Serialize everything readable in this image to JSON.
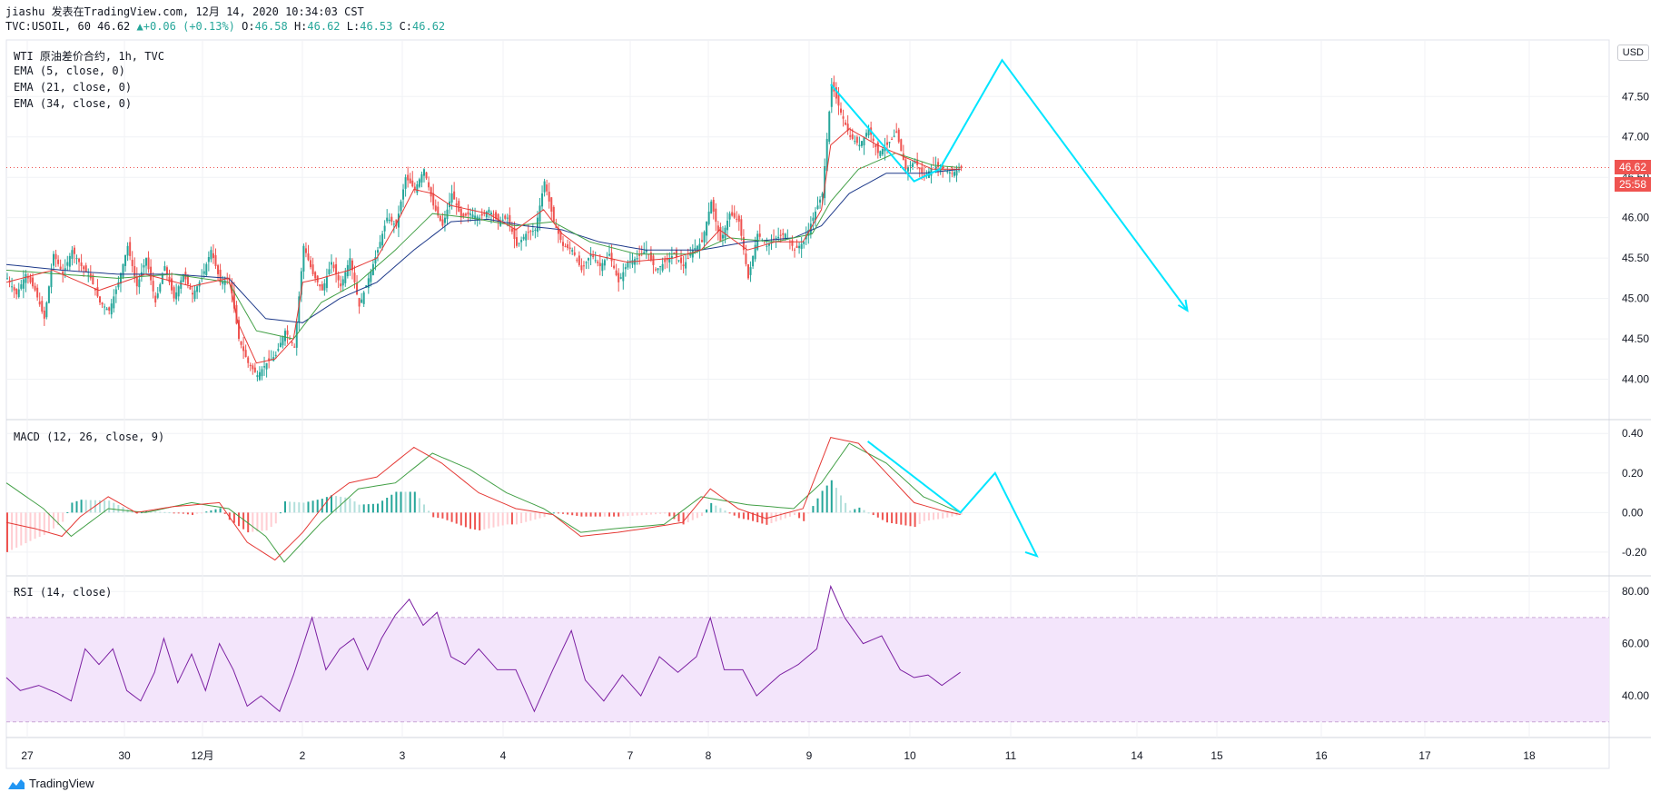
{
  "header": {
    "publisher": "jiashu 发表在TradingView.com, 12月 14, 2020 10:34:03 CST",
    "symbol": "TVC:USOIL, 60",
    "last": "46.62",
    "change": "+0.06 (+0.13%)",
    "o_label": "O:",
    "o": "46.58",
    "h_label": "H:",
    "h": "46.62",
    "l_label": "L:",
    "l": "46.53",
    "c_label": "C:",
    "c": "46.62",
    "up_arrow": "▲"
  },
  "indicators": {
    "title": "WTI 原油差价合约, 1h, TVC",
    "ema5": "EMA (5, close, 0)",
    "ema21": "EMA (21, close, 0)",
    "ema34": "EMA (34, close, 0)",
    "macd": "MACD (12, 26, close, 9)",
    "rsi": "RSI (14, close)"
  },
  "price_tag": {
    "price": "46.62",
    "countdown": "25:58"
  },
  "currency_button": "USD",
  "logo_text": "TradingView",
  "colors": {
    "up": "#26a69a",
    "down": "#ef5350",
    "ema5": "#e53935",
    "ema21": "#43a047",
    "ema34": "#1e3a8a",
    "annotation": "#00e5ff",
    "rsi": "#7b1fa2",
    "rsi_band": "#f3e5fb"
  },
  "chart_data": [
    {
      "type": "candlestick",
      "name": "TVC:USOIL, 60",
      "x_ticks": [
        "27",
        "30",
        "12月",
        "2",
        "3",
        "4",
        "7",
        "8",
        "9",
        "10",
        "11",
        "14",
        "15",
        "16",
        "17",
        "18"
      ],
      "y_ticks": [
        "44.00",
        "44.50",
        "45.00",
        "45.50",
        "46.00",
        "46.50",
        "47.00",
        "47.50"
      ],
      "ylim": [
        43.5,
        48.2
      ],
      "close_path": [
        [
          0,
          45.25
        ],
        [
          4,
          45.05
        ],
        [
          8,
          45.3
        ],
        [
          12,
          45.1
        ],
        [
          16,
          44.75
        ],
        [
          20,
          45.55
        ],
        [
          24,
          45.3
        ],
        [
          28,
          45.6
        ],
        [
          32,
          45.4
        ],
        [
          36,
          45.25
        ],
        [
          40,
          44.95
        ],
        [
          44,
          44.85
        ],
        [
          48,
          45.2
        ],
        [
          52,
          45.65
        ],
        [
          56,
          45.15
        ],
        [
          60,
          45.5
        ],
        [
          64,
          44.95
        ],
        [
          68,
          45.4
        ],
        [
          72,
          45.0
        ],
        [
          76,
          45.3
        ],
        [
          80,
          45.05
        ],
        [
          84,
          45.25
        ],
        [
          88,
          45.6
        ],
        [
          92,
          45.2
        ],
        [
          96,
          45.25
        ],
        [
          100,
          44.5
        ],
        [
          104,
          44.2
        ],
        [
          108,
          44.05
        ],
        [
          112,
          44.2
        ],
        [
          116,
          44.3
        ],
        [
          120,
          44.6
        ],
        [
          124,
          44.4
        ],
        [
          128,
          45.65
        ],
        [
          132,
          45.3
        ],
        [
          136,
          45.1
        ],
        [
          140,
          45.45
        ],
        [
          144,
          45.15
        ],
        [
          148,
          45.5
        ],
        [
          152,
          44.9
        ],
        [
          156,
          45.25
        ],
        [
          160,
          45.6
        ],
        [
          164,
          46.0
        ],
        [
          168,
          45.9
        ],
        [
          172,
          46.5
        ],
        [
          176,
          46.35
        ],
        [
          180,
          46.6
        ],
        [
          184,
          46.15
        ],
        [
          188,
          45.9
        ],
        [
          192,
          46.3
        ],
        [
          196,
          46.0
        ],
        [
          200,
          46.05
        ],
        [
          204,
          46.0
        ],
        [
          208,
          46.1
        ],
        [
          212,
          45.95
        ],
        [
          216,
          46.0
        ],
        [
          220,
          45.65
        ],
        [
          224,
          45.8
        ],
        [
          228,
          45.85
        ],
        [
          232,
          46.45
        ],
        [
          236,
          45.95
        ],
        [
          240,
          45.65
        ],
        [
          244,
          45.6
        ],
        [
          248,
          45.35
        ],
        [
          252,
          45.55
        ],
        [
          256,
          45.4
        ],
        [
          260,
          45.55
        ],
        [
          264,
          45.2
        ],
        [
          268,
          45.45
        ],
        [
          272,
          45.5
        ],
        [
          276,
          45.6
        ],
        [
          280,
          45.35
        ],
        [
          284,
          45.45
        ],
        [
          288,
          45.55
        ],
        [
          292,
          45.4
        ],
        [
          296,
          45.6
        ],
        [
          300,
          45.7
        ],
        [
          304,
          46.2
        ],
        [
          308,
          45.7
        ],
        [
          312,
          46.05
        ],
        [
          316,
          45.95
        ],
        [
          320,
          45.25
        ],
        [
          324,
          45.8
        ],
        [
          328,
          45.65
        ],
        [
          332,
          45.75
        ],
        [
          336,
          45.8
        ],
        [
          340,
          45.6
        ],
        [
          344,
          45.7
        ],
        [
          348,
          46.0
        ],
        [
          352,
          46.3
        ],
        [
          356,
          47.65
        ],
        [
          360,
          47.3
        ],
        [
          364,
          47.0
        ],
        [
          368,
          46.9
        ],
        [
          372,
          47.1
        ],
        [
          376,
          46.8
        ],
        [
          380,
          46.9
        ],
        [
          384,
          47.05
        ],
        [
          388,
          46.6
        ],
        [
          392,
          46.7
        ],
        [
          396,
          46.5
        ],
        [
          400,
          46.65
        ],
        [
          404,
          46.6
        ],
        [
          408,
          46.55
        ],
        [
          412,
          46.62
        ]
      ],
      "ema5_path": [
        [
          0,
          45.2
        ],
        [
          20,
          45.35
        ],
        [
          40,
          45.1
        ],
        [
          60,
          45.3
        ],
        [
          80,
          45.15
        ],
        [
          96,
          45.25
        ],
        [
          100,
          44.7
        ],
        [
          108,
          44.2
        ],
        [
          116,
          44.25
        ],
        [
          124,
          44.5
        ],
        [
          128,
          45.2
        ],
        [
          136,
          45.25
        ],
        [
          148,
          45.35
        ],
        [
          160,
          45.5
        ],
        [
          168,
          45.9
        ],
        [
          176,
          46.35
        ],
        [
          184,
          46.3
        ],
        [
          192,
          46.15
        ],
        [
          208,
          46.05
        ],
        [
          220,
          45.85
        ],
        [
          232,
          46.1
        ],
        [
          240,
          45.8
        ],
        [
          252,
          45.55
        ],
        [
          268,
          45.45
        ],
        [
          288,
          45.5
        ],
        [
          300,
          45.6
        ],
        [
          308,
          45.85
        ],
        [
          320,
          45.6
        ],
        [
          332,
          45.7
        ],
        [
          344,
          45.7
        ],
        [
          352,
          46.1
        ],
        [
          356,
          46.9
        ],
        [
          364,
          47.1
        ],
        [
          376,
          46.9
        ],
        [
          388,
          46.75
        ],
        [
          400,
          46.6
        ],
        [
          412,
          46.6
        ]
      ],
      "ema21_path": [
        [
          0,
          45.35
        ],
        [
          24,
          45.3
        ],
        [
          48,
          45.25
        ],
        [
          72,
          45.3
        ],
        [
          96,
          45.2
        ],
        [
          108,
          44.6
        ],
        [
          124,
          44.5
        ],
        [
          136,
          44.95
        ],
        [
          152,
          45.2
        ],
        [
          168,
          45.6
        ],
        [
          184,
          46.05
        ],
        [
          200,
          46.0
        ],
        [
          220,
          45.9
        ],
        [
          236,
          45.95
        ],
        [
          252,
          45.7
        ],
        [
          272,
          45.55
        ],
        [
          296,
          45.55
        ],
        [
          312,
          45.75
        ],
        [
          332,
          45.7
        ],
        [
          348,
          45.8
        ],
        [
          356,
          46.2
        ],
        [
          368,
          46.6
        ],
        [
          384,
          46.8
        ],
        [
          400,
          46.65
        ],
        [
          412,
          46.62
        ]
      ],
      "ema34_path": [
        [
          0,
          45.42
        ],
        [
          24,
          45.35
        ],
        [
          48,
          45.3
        ],
        [
          72,
          45.3
        ],
        [
          96,
          45.25
        ],
        [
          112,
          44.75
        ],
        [
          128,
          44.7
        ],
        [
          144,
          45.0
        ],
        [
          160,
          45.2
        ],
        [
          176,
          45.6
        ],
        [
          192,
          45.95
        ],
        [
          208,
          45.98
        ],
        [
          224,
          45.9
        ],
        [
          240,
          45.85
        ],
        [
          256,
          45.7
        ],
        [
          276,
          45.6
        ],
        [
          300,
          45.6
        ],
        [
          320,
          45.7
        ],
        [
          340,
          45.75
        ],
        [
          352,
          45.9
        ],
        [
          364,
          46.3
        ],
        [
          380,
          46.55
        ],
        [
          396,
          46.55
        ],
        [
          412,
          46.6
        ]
      ],
      "annotation_arrows": [
        [
          [
            356,
            47.65
          ],
          [
            392,
            46.45
          ],
          [
            403,
            46.6
          ],
          [
            430,
            47.95
          ],
          [
            510,
            44.85
          ]
        ]
      ]
    },
    {
      "type": "macd",
      "name": "MACD (12, 26, close, 9)",
      "y_ticks": [
        "0.40",
        "0.20",
        "0.00",
        "-0.20"
      ],
      "ylim": [
        -0.32,
        0.47
      ],
      "macd_path": [
        [
          0,
          -0.05
        ],
        [
          12,
          -0.08
        ],
        [
          24,
          -0.12
        ],
        [
          32,
          -0.02
        ],
        [
          44,
          0.08
        ],
        [
          56,
          0.0
        ],
        [
          72,
          0.03
        ],
        [
          92,
          0.05
        ],
        [
          104,
          -0.15
        ],
        [
          116,
          -0.24
        ],
        [
          128,
          -0.1
        ],
        [
          140,
          0.08
        ],
        [
          148,
          0.15
        ],
        [
          160,
          0.18
        ],
        [
          176,
          0.33
        ],
        [
          188,
          0.25
        ],
        [
          204,
          0.1
        ],
        [
          220,
          0.02
        ],
        [
          236,
          -0.01
        ],
        [
          248,
          -0.12
        ],
        [
          264,
          -0.1
        ],
        [
          276,
          -0.08
        ],
        [
          292,
          -0.05
        ],
        [
          304,
          0.12
        ],
        [
          316,
          0.02
        ],
        [
          328,
          -0.03
        ],
        [
          344,
          0.02
        ],
        [
          356,
          0.38
        ],
        [
          368,
          0.35
        ],
        [
          380,
          0.2
        ],
        [
          392,
          0.05
        ],
        [
          404,
          0.01
        ],
        [
          412,
          -0.01
        ]
      ],
      "signal_path": [
        [
          0,
          0.15
        ],
        [
          16,
          0.02
        ],
        [
          28,
          -0.12
        ],
        [
          44,
          0.02
        ],
        [
          60,
          0.0
        ],
        [
          80,
          0.05
        ],
        [
          96,
          0.02
        ],
        [
          112,
          -0.12
        ],
        [
          120,
          -0.25
        ],
        [
          136,
          -0.05
        ],
        [
          152,
          0.12
        ],
        [
          168,
          0.15
        ],
        [
          184,
          0.3
        ],
        [
          200,
          0.22
        ],
        [
          216,
          0.1
        ],
        [
          232,
          0.02
        ],
        [
          248,
          -0.1
        ],
        [
          264,
          -0.08
        ],
        [
          284,
          -0.06
        ],
        [
          300,
          0.08
        ],
        [
          320,
          0.04
        ],
        [
          340,
          0.02
        ],
        [
          352,
          0.15
        ],
        [
          364,
          0.35
        ],
        [
          380,
          0.25
        ],
        [
          396,
          0.08
        ],
        [
          412,
          0.0
        ]
      ],
      "annotation_arrows": [
        [
          [
            372,
            0.36
          ],
          [
            412,
            0.0
          ],
          [
            427,
            0.2
          ],
          [
            445,
            -0.22
          ],
          [
            440,
            -0.2
          ]
        ]
      ]
    },
    {
      "type": "line",
      "name": "RSI (14, close)",
      "y_ticks": [
        "80.00",
        "60.00",
        "40.00"
      ],
      "ylim": [
        24,
        86
      ],
      "band": [
        30,
        70
      ],
      "values_path": [
        [
          0,
          47
        ],
        [
          6,
          42
        ],
        [
          14,
          44
        ],
        [
          22,
          41
        ],
        [
          28,
          38
        ],
        [
          34,
          58
        ],
        [
          40,
          52
        ],
        [
          46,
          58
        ],
        [
          52,
          42
        ],
        [
          58,
          38
        ],
        [
          64,
          49
        ],
        [
          68,
          62
        ],
        [
          74,
          45
        ],
        [
          80,
          56
        ],
        [
          86,
          42
        ],
        [
          92,
          60
        ],
        [
          98,
          50
        ],
        [
          104,
          36
        ],
        [
          110,
          40
        ],
        [
          118,
          34
        ],
        [
          124,
          48
        ],
        [
          132,
          70
        ],
        [
          138,
          50
        ],
        [
          144,
          58
        ],
        [
          150,
          62
        ],
        [
          156,
          50
        ],
        [
          162,
          62
        ],
        [
          168,
          71
        ],
        [
          174,
          77
        ],
        [
          180,
          67
        ],
        [
          186,
          72
        ],
        [
          192,
          55
        ],
        [
          198,
          52
        ],
        [
          204,
          58
        ],
        [
          212,
          50
        ],
        [
          220,
          50
        ],
        [
          228,
          34
        ],
        [
          236,
          50
        ],
        [
          244,
          65
        ],
        [
          250,
          46
        ],
        [
          258,
          38
        ],
        [
          266,
          48
        ],
        [
          274,
          40
        ],
        [
          282,
          55
        ],
        [
          290,
          49
        ],
        [
          298,
          55
        ],
        [
          304,
          70
        ],
        [
          310,
          50
        ],
        [
          318,
          50
        ],
        [
          324,
          40
        ],
        [
          334,
          48
        ],
        [
          342,
          52
        ],
        [
          350,
          58
        ],
        [
          356,
          82
        ],
        [
          362,
          70
        ],
        [
          370,
          60
        ],
        [
          378,
          63
        ],
        [
          386,
          50
        ],
        [
          392,
          47
        ],
        [
          398,
          48
        ],
        [
          404,
          44
        ],
        [
          412,
          49
        ]
      ]
    }
  ]
}
